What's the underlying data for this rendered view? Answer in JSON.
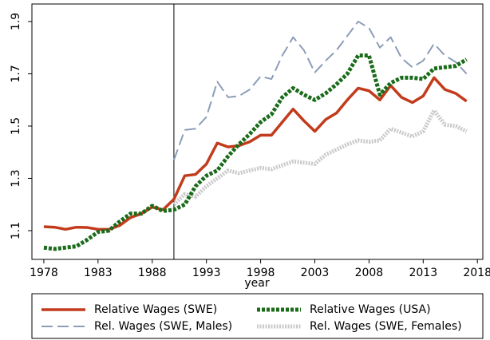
{
  "chart_data": {
    "type": "line",
    "x": [
      1978,
      1979,
      1980,
      1981,
      1982,
      1983,
      1984,
      1985,
      1986,
      1987,
      1988,
      1989,
      1990,
      1991,
      1992,
      1993,
      1994,
      1995,
      1996,
      1997,
      1998,
      1999,
      2000,
      2001,
      2002,
      2003,
      2004,
      2005,
      2006,
      2007,
      2008,
      2009,
      2010,
      2011,
      2012,
      2013,
      2014,
      2015,
      2016,
      2017
    ],
    "xlabel": "year",
    "xlim": [
      1976.9,
      2018.5
    ],
    "xticks": [
      1978,
      1983,
      1988,
      1993,
      1998,
      2003,
      2008,
      2013,
      2018
    ],
    "ylim": [
      0.99,
      1.967
    ],
    "yticks": [
      1.1,
      1.3,
      1.5,
      1.7,
      1.9
    ],
    "vline": 1990,
    "series": [
      {
        "name": "Relative Wages (SWE)",
        "color": "#c23b1c",
        "style": "solid",
        "values": [
          1.115,
          1.113,
          1.105,
          1.113,
          1.112,
          1.105,
          1.105,
          1.12,
          1.15,
          1.165,
          1.19,
          1.18,
          1.22,
          1.31,
          1.315,
          1.355,
          1.435,
          1.42,
          1.425,
          1.44,
          1.465,
          1.465,
          1.515,
          1.565,
          1.52,
          1.48,
          1.525,
          1.55,
          1.6,
          1.645,
          1.635,
          1.6,
          1.655,
          1.61,
          1.59,
          1.615,
          1.685,
          1.64,
          1.625,
          1.595
        ]
      },
      {
        "name": "Rel. Wages (SWE, Males)",
        "color": "#8d9db8",
        "style": "dashed",
        "values": [
          null,
          null,
          null,
          null,
          null,
          null,
          null,
          null,
          null,
          null,
          null,
          null,
          1.37,
          1.485,
          1.49,
          1.535,
          1.67,
          1.61,
          1.615,
          1.64,
          1.69,
          1.68,
          1.77,
          1.84,
          1.79,
          1.705,
          1.75,
          1.79,
          1.845,
          1.9,
          1.875,
          1.8,
          1.84,
          1.76,
          1.725,
          1.75,
          1.815,
          1.77,
          1.745,
          1.7
        ]
      },
      {
        "name": "Relative Wages (USA)",
        "color": "#1a6b1a",
        "style": "dotted",
        "values": [
          1.035,
          1.03,
          1.035,
          1.04,
          1.065,
          1.095,
          1.1,
          1.135,
          1.165,
          1.165,
          1.195,
          1.175,
          1.18,
          1.2,
          1.27,
          1.31,
          1.33,
          1.385,
          1.43,
          1.47,
          1.515,
          1.545,
          1.61,
          1.645,
          1.62,
          1.6,
          1.625,
          1.66,
          1.7,
          1.77,
          1.77,
          1.62,
          1.665,
          1.685,
          1.685,
          1.68,
          1.72,
          1.725,
          1.73,
          1.755
        ]
      },
      {
        "name": "Rel. Wages (SWE, Females)",
        "color": "#c9c9c9",
        "style": "fine",
        "values": [
          null,
          null,
          null,
          null,
          null,
          null,
          null,
          null,
          null,
          null,
          null,
          null,
          1.2,
          1.24,
          1.23,
          1.27,
          1.3,
          1.33,
          1.32,
          1.33,
          1.34,
          1.335,
          1.35,
          1.365,
          1.36,
          1.355,
          1.39,
          1.41,
          1.43,
          1.445,
          1.44,
          1.445,
          1.49,
          1.475,
          1.46,
          1.48,
          1.56,
          1.505,
          1.5,
          1.48
        ]
      }
    ]
  }
}
